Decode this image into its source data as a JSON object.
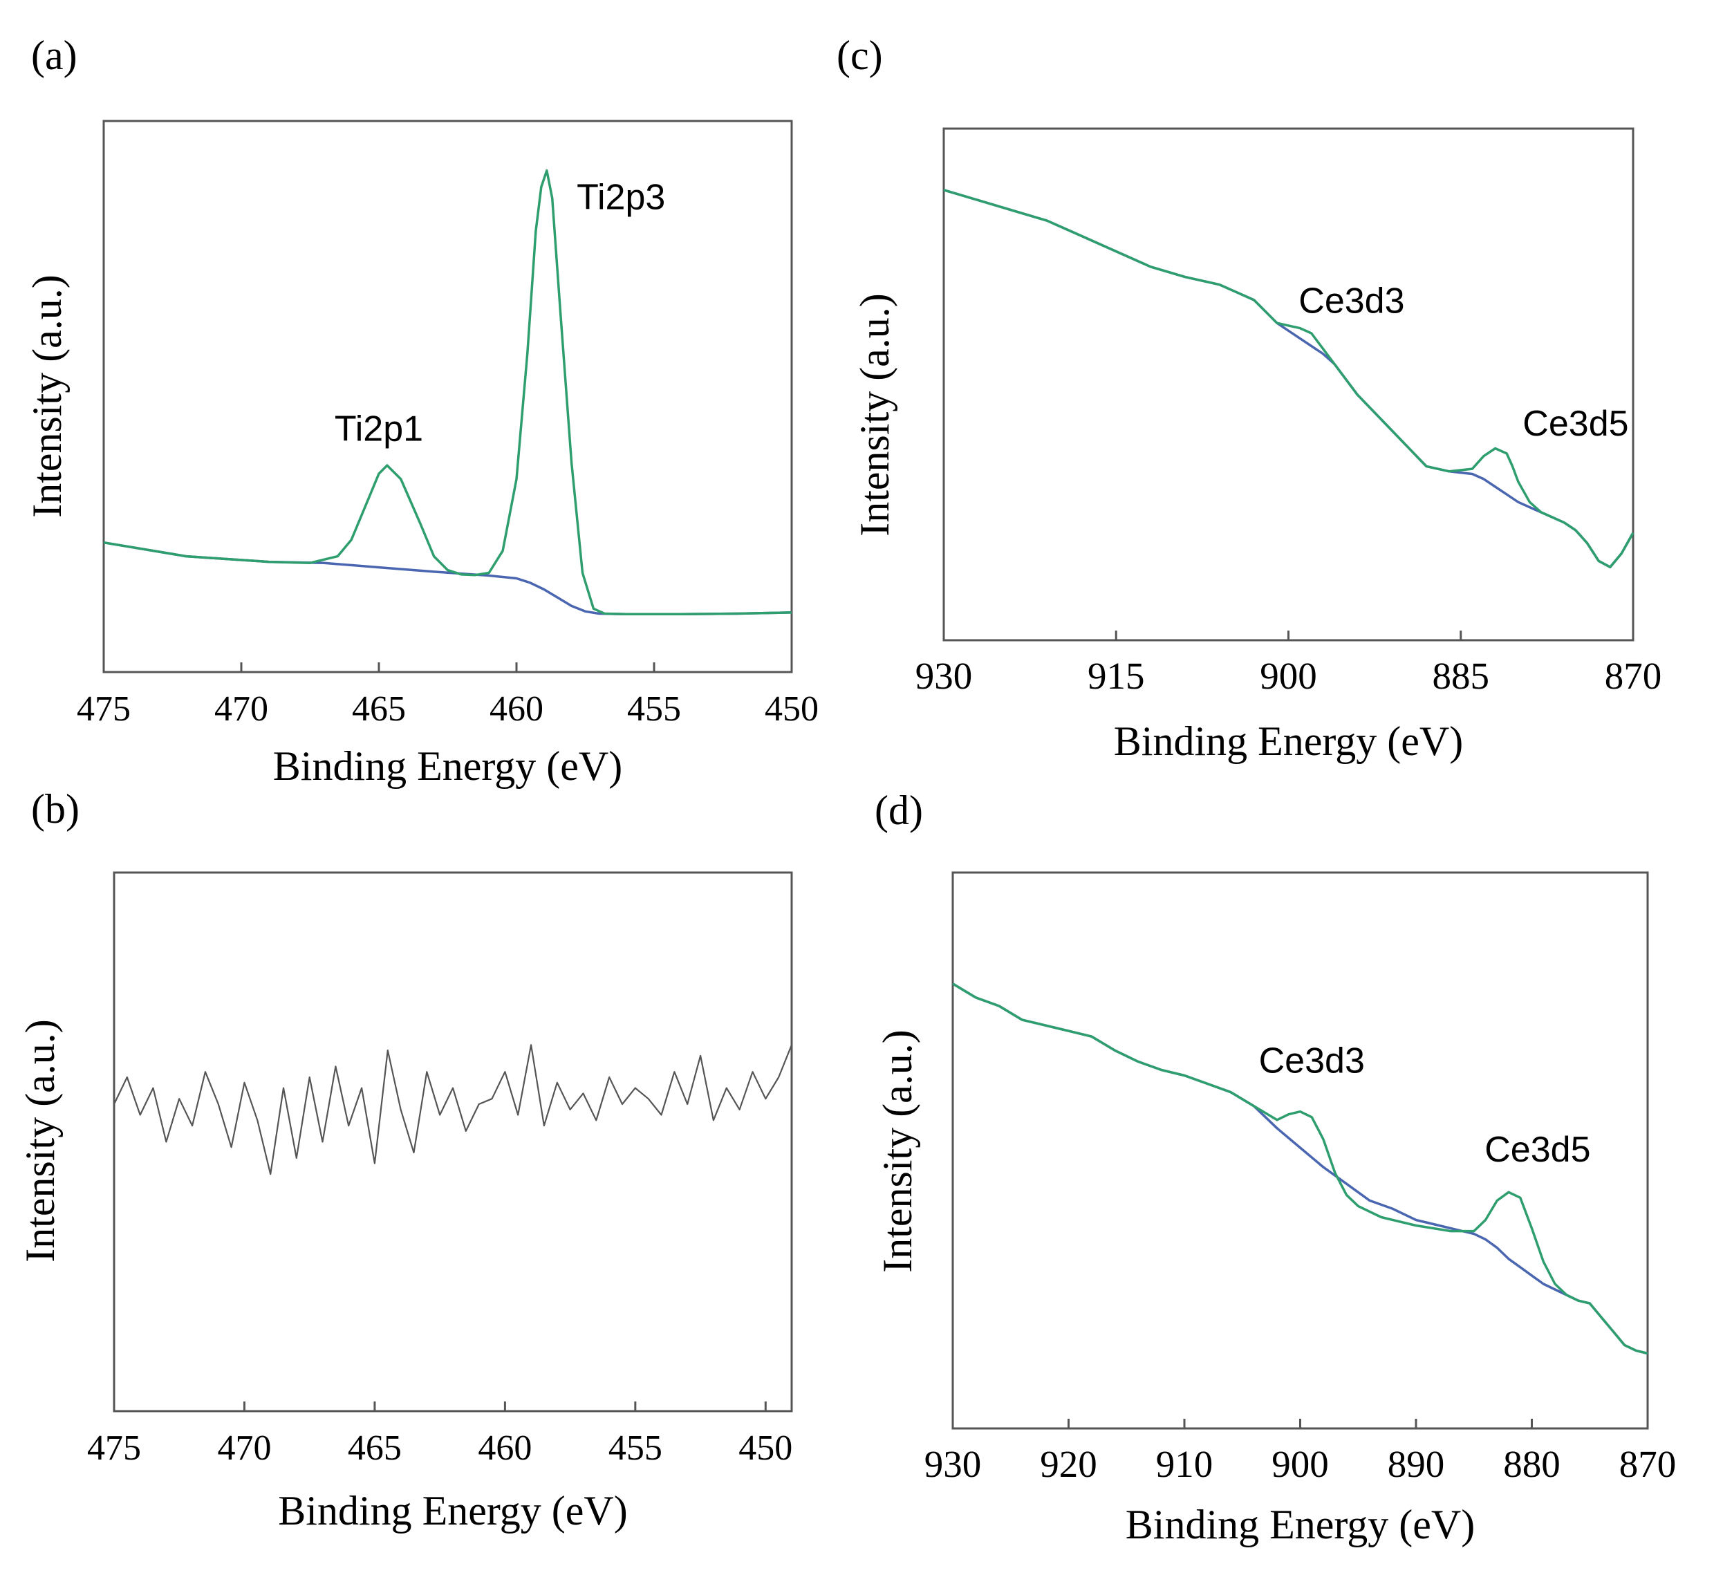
{
  "chart_data": [
    {
      "type": "line",
      "panel_label": "(a)",
      "xlabel": "Binding Energy (eV)",
      "ylabel": "Intensity (a.u.)",
      "xlim": [
        475,
        450
      ],
      "xticks": [
        475,
        470,
        465,
        460,
        455,
        450
      ],
      "ylim": [
        0,
        100
      ],
      "annotations": [
        {
          "text": "Ti2p1",
          "x": 465,
          "y": 42
        },
        {
          "text": "Ti2p3",
          "x": 456.2,
          "y": 84
        }
      ],
      "series": [
        {
          "name": "fit",
          "color": "#2e9e6e",
          "x": [
            475,
            472,
            469,
            467.5,
            466.5,
            466,
            465.5,
            465,
            464.7,
            464.2,
            463.5,
            463,
            462.5,
            462,
            461.5,
            461,
            460.5,
            460,
            459.6,
            459.3,
            459.1,
            458.9,
            458.7,
            458.4,
            458,
            457.6,
            457.2,
            456.8,
            456,
            454,
            452,
            450
          ],
          "y": [
            23.5,
            21,
            20,
            19.8,
            21,
            24,
            30,
            36,
            37.5,
            35,
            27,
            21,
            18.5,
            17.7,
            17.6,
            18,
            22,
            35,
            58,
            80,
            88,
            91,
            86,
            65,
            38,
            18,
            11.5,
            10.6,
            10.5,
            10.5,
            10.6,
            10.8
          ]
        },
        {
          "name": "background",
          "color": "#4a66b0",
          "x": [
            475,
            472,
            469,
            467,
            465,
            463,
            461,
            460,
            459.5,
            459,
            458.5,
            458,
            457.5,
            457,
            456,
            454,
            452,
            450
          ],
          "y": [
            23.5,
            21,
            20,
            19.8,
            19,
            18.2,
            17.5,
            17,
            16.2,
            15,
            13.5,
            12,
            11,
            10.6,
            10.5,
            10.5,
            10.6,
            10.8
          ]
        }
      ]
    },
    {
      "type": "line",
      "panel_label": "(b)",
      "xlabel": "Binding Energy (eV)",
      "ylabel": "Intensity (a.u.)",
      "xlim": [
        475,
        449
      ],
      "xticks": [
        475,
        470,
        465,
        460,
        455,
        450
      ],
      "ylim": [
        0,
        100
      ],
      "series": [
        {
          "name": "spectrum",
          "color": "#555555",
          "x": [
            475,
            474.5,
            474,
            473.5,
            473,
            472.5,
            472,
            471.5,
            471,
            470.5,
            470,
            469.5,
            469,
            468.5,
            468,
            467.5,
            467,
            466.5,
            466,
            465.5,
            465,
            464.5,
            464,
            463.5,
            463,
            462.5,
            462,
            461.5,
            461,
            460.5,
            460,
            459.5,
            459,
            458.5,
            458,
            457.5,
            457,
            456.5,
            456,
            455.5,
            455,
            454.5,
            454,
            453.5,
            453,
            452.5,
            452,
            451.5,
            451,
            450.5,
            450,
            449.5,
            449
          ],
          "y": [
            57,
            62,
            55,
            60,
            50,
            58,
            53,
            63,
            57,
            49,
            61,
            54,
            44,
            60,
            47,
            62,
            50,
            64,
            53,
            60,
            46,
            67,
            56,
            48,
            63,
            55,
            60,
            52,
            57,
            58,
            63,
            55,
            68,
            53,
            61,
            56,
            59,
            54,
            62,
            57,
            60,
            58,
            55,
            63,
            57,
            66,
            54,
            60,
            56,
            63,
            58,
            62,
            68
          ]
        }
      ]
    },
    {
      "type": "line",
      "panel_label": "(c)",
      "xlabel": "Binding Energy (eV)",
      "ylabel": "Intensity (a.u.)",
      "xlim": [
        930,
        870
      ],
      "xticks": [
        930,
        915,
        900,
        885,
        870
      ],
      "ylim": [
        0,
        100
      ],
      "annotations": [
        {
          "text": "Ce3d3",
          "x": 894.5,
          "y": 64
        },
        {
          "text": "Ce3d5",
          "x": 875,
          "y": 40
        }
      ],
      "series": [
        {
          "name": "fit",
          "color": "#2e9e6e",
          "x": [
            930,
            927,
            924,
            921,
            918,
            915,
            912,
            909,
            906,
            903,
            901,
            900,
            899,
            898,
            897,
            896,
            894,
            891,
            888,
            886,
            884,
            883,
            882,
            881,
            880.5,
            880,
            879,
            878,
            877,
            876,
            875,
            874,
            873,
            872,
            871,
            870
          ],
          "y": [
            88,
            86,
            84,
            82,
            79,
            76,
            73,
            71,
            69.5,
            66.5,
            62,
            61.5,
            61,
            60,
            57,
            54,
            48,
            41,
            34,
            33,
            33.5,
            36,
            37.5,
            36.5,
            34,
            31,
            27,
            25,
            24,
            23,
            21.5,
            19,
            15.5,
            14.3,
            17,
            21
          ]
        },
        {
          "name": "background",
          "color": "#4a66b0",
          "x": [
            930,
            927,
            924,
            921,
            918,
            915,
            912,
            909,
            906,
            903,
            901,
            900,
            899,
            898,
            897,
            896,
            894,
            891,
            888,
            886,
            884,
            883,
            882,
            881,
            880,
            879,
            878,
            877,
            876,
            875,
            874,
            873,
            872,
            871,
            870
          ],
          "y": [
            88,
            86,
            84,
            82,
            79,
            76,
            73,
            71,
            69.5,
            66.5,
            62,
            60.5,
            59,
            57.5,
            56,
            54,
            48,
            41,
            34,
            33,
            32.5,
            31.5,
            30,
            28.5,
            27,
            26,
            25,
            24,
            23,
            21.5,
            19,
            15.5,
            14.3,
            17,
            21
          ]
        }
      ]
    },
    {
      "type": "line",
      "panel_label": "(d)",
      "xlabel": "Binding Energy (eV)",
      "ylabel": "Intensity (a.u.)",
      "xlim": [
        930,
        870
      ],
      "xticks": [
        930,
        920,
        910,
        900,
        890,
        880,
        870
      ],
      "ylim": [
        0,
        100
      ],
      "annotations": [
        {
          "text": "Ce3d3",
          "x": 899,
          "y": 64
        },
        {
          "text": "Ce3d5",
          "x": 879.5,
          "y": 48
        }
      ],
      "series": [
        {
          "name": "fit",
          "color": "#2e9e6e",
          "x": [
            930,
            928,
            926,
            924,
            922,
            920,
            918,
            916,
            914,
            912,
            910,
            908,
            906,
            904,
            902,
            901,
            900,
            899,
            898,
            897,
            896,
            895,
            893,
            890,
            887,
            885,
            884,
            883,
            882,
            881,
            880,
            879,
            878,
            877,
            876,
            875,
            874,
            873,
            872,
            871,
            870
          ],
          "y": [
            80,
            77.5,
            76,
            73.5,
            72.5,
            71.5,
            70.5,
            68,
            66,
            64.5,
            63.5,
            62,
            60.5,
            58,
            55.5,
            56.5,
            57,
            56,
            52,
            46,
            42,
            40,
            38,
            36.5,
            35.5,
            35.5,
            37.5,
            41,
            42.5,
            41.5,
            36,
            30,
            26,
            24,
            23,
            22.5,
            20,
            17.5,
            15,
            14,
            13.5
          ]
        },
        {
          "name": "background",
          "color": "#4a66b0",
          "x": [
            930,
            928,
            926,
            924,
            922,
            920,
            918,
            916,
            914,
            912,
            910,
            908,
            906,
            904,
            902,
            900,
            898,
            896,
            894,
            892,
            890,
            888,
            886,
            885,
            884,
            883,
            882,
            881,
            880,
            879,
            878,
            877,
            876,
            875,
            874,
            873,
            872,
            871,
            870
          ],
          "y": [
            80,
            77.5,
            76,
            73.5,
            72.5,
            71.5,
            70.5,
            68,
            66,
            64.5,
            63.5,
            62,
            60.5,
            58,
            54,
            50.5,
            47,
            44,
            41,
            39.5,
            37.5,
            36.5,
            35.5,
            35,
            34,
            32.5,
            30.5,
            29,
            27.5,
            26,
            25,
            24,
            23,
            22.5,
            20,
            17.5,
            15,
            14,
            13.5
          ]
        }
      ]
    }
  ]
}
